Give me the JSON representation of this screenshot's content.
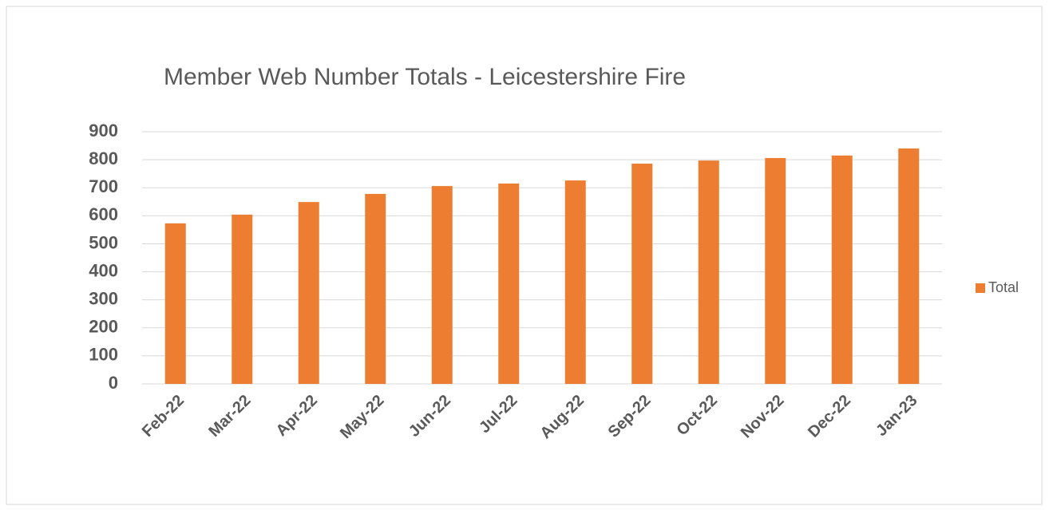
{
  "chart_data": {
    "type": "bar",
    "title": "Member Web Number Totals  -  Leicestershire Fire",
    "categories": [
      "Feb-22",
      "Mar-22",
      "Apr-22",
      "May-22",
      "Jun-22",
      "Jul-22",
      "Aug-22",
      "Sep-22",
      "Oct-22",
      "Nov-22",
      "Dec-22",
      "Jan-23"
    ],
    "series": [
      {
        "name": "Total",
        "color": "#ed7d31",
        "values": [
          573,
          604,
          649,
          678,
          706,
          715,
          726,
          786,
          797,
          806,
          815,
          840
        ]
      }
    ],
    "ylim": [
      0,
      900
    ],
    "yticks": [
      0,
      100,
      200,
      300,
      400,
      500,
      600,
      700,
      800,
      900
    ],
    "grid": true,
    "legend": "right"
  }
}
